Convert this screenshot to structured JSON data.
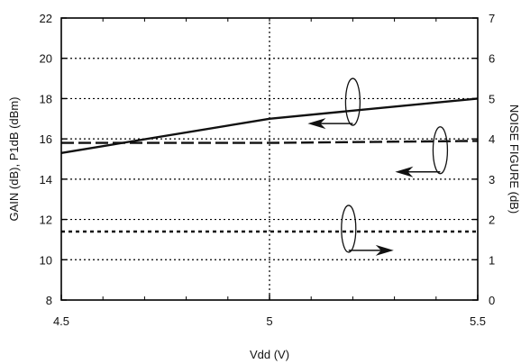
{
  "chart_data": {
    "type": "line",
    "xlabel": "Vdd (V)",
    "ylabel": "GAIN (dB), P1dB (dBm)",
    "y2label": "NOISE FIGURE (dB)",
    "xlim": [
      4.5,
      5.5
    ],
    "ylim": [
      8,
      22
    ],
    "y2lim": [
      0,
      7
    ],
    "xticks": [
      "4.5",
      "5",
      "5.5"
    ],
    "yticks": [
      "8",
      "10",
      "12",
      "14",
      "16",
      "18",
      "20",
      "22"
    ],
    "y2ticks": [
      "0",
      "1",
      "2",
      "3",
      "4",
      "5",
      "6",
      "7"
    ],
    "grid": "dotted",
    "series": [
      {
        "style": "solid",
        "axis": "left",
        "x": [
          4.5,
          5.0,
          5.5
        ],
        "y": [
          15.3,
          17.0,
          18.0
        ]
      },
      {
        "style": "long-dash",
        "axis": "left",
        "x": [
          4.5,
          5.0,
          5.5
        ],
        "y": [
          15.8,
          15.8,
          15.9
        ]
      },
      {
        "style": "short-dash",
        "axis": "right",
        "x": [
          4.5,
          5.0,
          5.5
        ],
        "y": [
          1.7,
          1.7,
          1.7
        ]
      }
    ],
    "annotations": [
      {
        "type": "axis-indicator",
        "target": "left",
        "x": 5.2,
        "y": 17.3
      },
      {
        "type": "axis-indicator",
        "target": "left",
        "x": 5.41,
        "y": 14.9
      },
      {
        "type": "axis-indicator",
        "target": "right",
        "x": 5.19,
        "y": 11.0
      }
    ]
  }
}
